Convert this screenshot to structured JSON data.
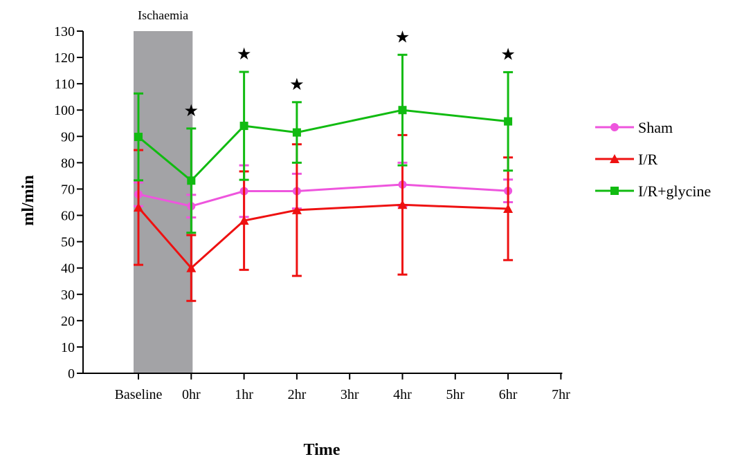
{
  "chart_data": {
    "type": "line",
    "title": "",
    "xlabel": "Time",
    "ylabel": "ml/min",
    "categories": [
      "Baseline",
      "0hr",
      "1hr",
      "2hr",
      "3hr",
      "4hr",
      "5hr",
      "6hr",
      "7hr"
    ],
    "ylim": [
      0,
      130
    ],
    "yticks": [
      0,
      10,
      20,
      30,
      40,
      50,
      60,
      70,
      80,
      90,
      100,
      110,
      120,
      130
    ],
    "grid": false,
    "legend_position": "right",
    "shaded_region": {
      "label": "Ischaemia",
      "from": "Baseline",
      "to": "0hr",
      "color": "#a3a3a6"
    },
    "series": [
      {
        "name": "Sham",
        "color": "#ee55dd",
        "marker": "circle",
        "x": [
          "Baseline",
          "0hr",
          "1hr",
          "2hr",
          "4hr",
          "6hr"
        ],
        "values": [
          68,
          63.5,
          69.2,
          69.2,
          71.7,
          69.3
        ],
        "error": [
          4.5,
          4.3,
          9.8,
          6.6,
          8.3,
          4.3
        ]
      },
      {
        "name": "I/R",
        "color": "#ee1111",
        "marker": "triangle",
        "x": [
          "Baseline",
          "0hr",
          "1hr",
          "2hr",
          "4hr",
          "6hr"
        ],
        "values": [
          63,
          40,
          58,
          62,
          64,
          62.5
        ],
        "error": [
          21.8,
          12.5,
          18.7,
          25,
          26.5,
          19.5
        ]
      },
      {
        "name": "I/R+glycine",
        "color": "#11bb11",
        "marker": "square",
        "x": [
          "Baseline",
          "0hr",
          "1hr",
          "2hr",
          "4hr",
          "6hr"
        ],
        "values": [
          89.8,
          73.2,
          94,
          91.5,
          100,
          95.7
        ],
        "error": [
          16.5,
          19.8,
          20.5,
          11.5,
          21,
          18.7
        ]
      }
    ],
    "significance_markers": {
      "symbol": "★",
      "x": [
        "0hr",
        "1hr",
        "2hr",
        "4hr",
        "6hr"
      ]
    }
  }
}
